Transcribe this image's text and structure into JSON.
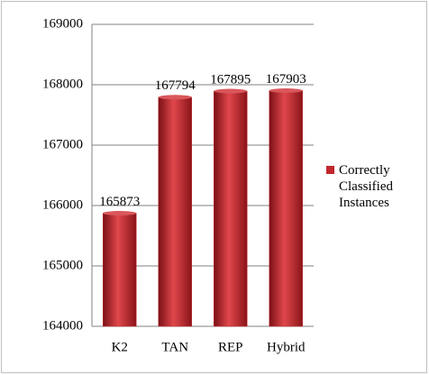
{
  "chart_data": {
    "type": "bar",
    "categories": [
      "K2",
      "TAN",
      "REP",
      "Hybrid"
    ],
    "series": [
      {
        "name": "Correctly Classified Instances",
        "color": "#c0272d",
        "values": [
          165873,
          167794,
          167895,
          167903
        ]
      }
    ],
    "ylim": [
      164000,
      169000
    ],
    "yticks": [
      164000,
      165000,
      166000,
      167000,
      168000,
      169000
    ],
    "grid": true,
    "legend": "right",
    "data_labels": true
  }
}
